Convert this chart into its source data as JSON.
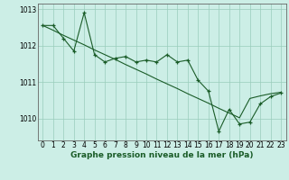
{
  "x": [
    0,
    1,
    2,
    3,
    4,
    5,
    6,
    7,
    8,
    9,
    10,
    11,
    12,
    13,
    14,
    15,
    16,
    17,
    18,
    19,
    20,
    21,
    22,
    23
  ],
  "y_actual": [
    1012.55,
    1012.55,
    1012.2,
    1011.85,
    1012.9,
    1011.75,
    1011.55,
    1011.65,
    1011.7,
    1011.55,
    1011.6,
    1011.55,
    1011.75,
    1011.55,
    1011.6,
    1011.05,
    1010.75,
    1009.65,
    1010.25,
    1009.85,
    1009.9,
    1010.4,
    1010.6,
    1010.7
  ],
  "y_smooth": [
    1012.55,
    1012.42,
    1012.28,
    1012.15,
    1012.02,
    1011.88,
    1011.75,
    1011.62,
    1011.48,
    1011.35,
    1011.22,
    1011.08,
    1010.95,
    1010.82,
    1010.68,
    1010.55,
    1010.42,
    1010.28,
    1010.15,
    1010.02,
    1010.55,
    1010.62,
    1010.68,
    1010.72
  ],
  "bg_color": "#cceee6",
  "grid_color": "#99ccbb",
  "line_color": "#1a5c28",
  "xlabel": "Graphe pression niveau de la mer (hPa)",
  "xlim": [
    -0.5,
    23.5
  ],
  "ylim": [
    1009.4,
    1013.15
  ],
  "yticks": [
    1010,
    1011,
    1012,
    1013
  ],
  "xlabel_fontsize": 6.5,
  "tick_fontsize": 5.5
}
